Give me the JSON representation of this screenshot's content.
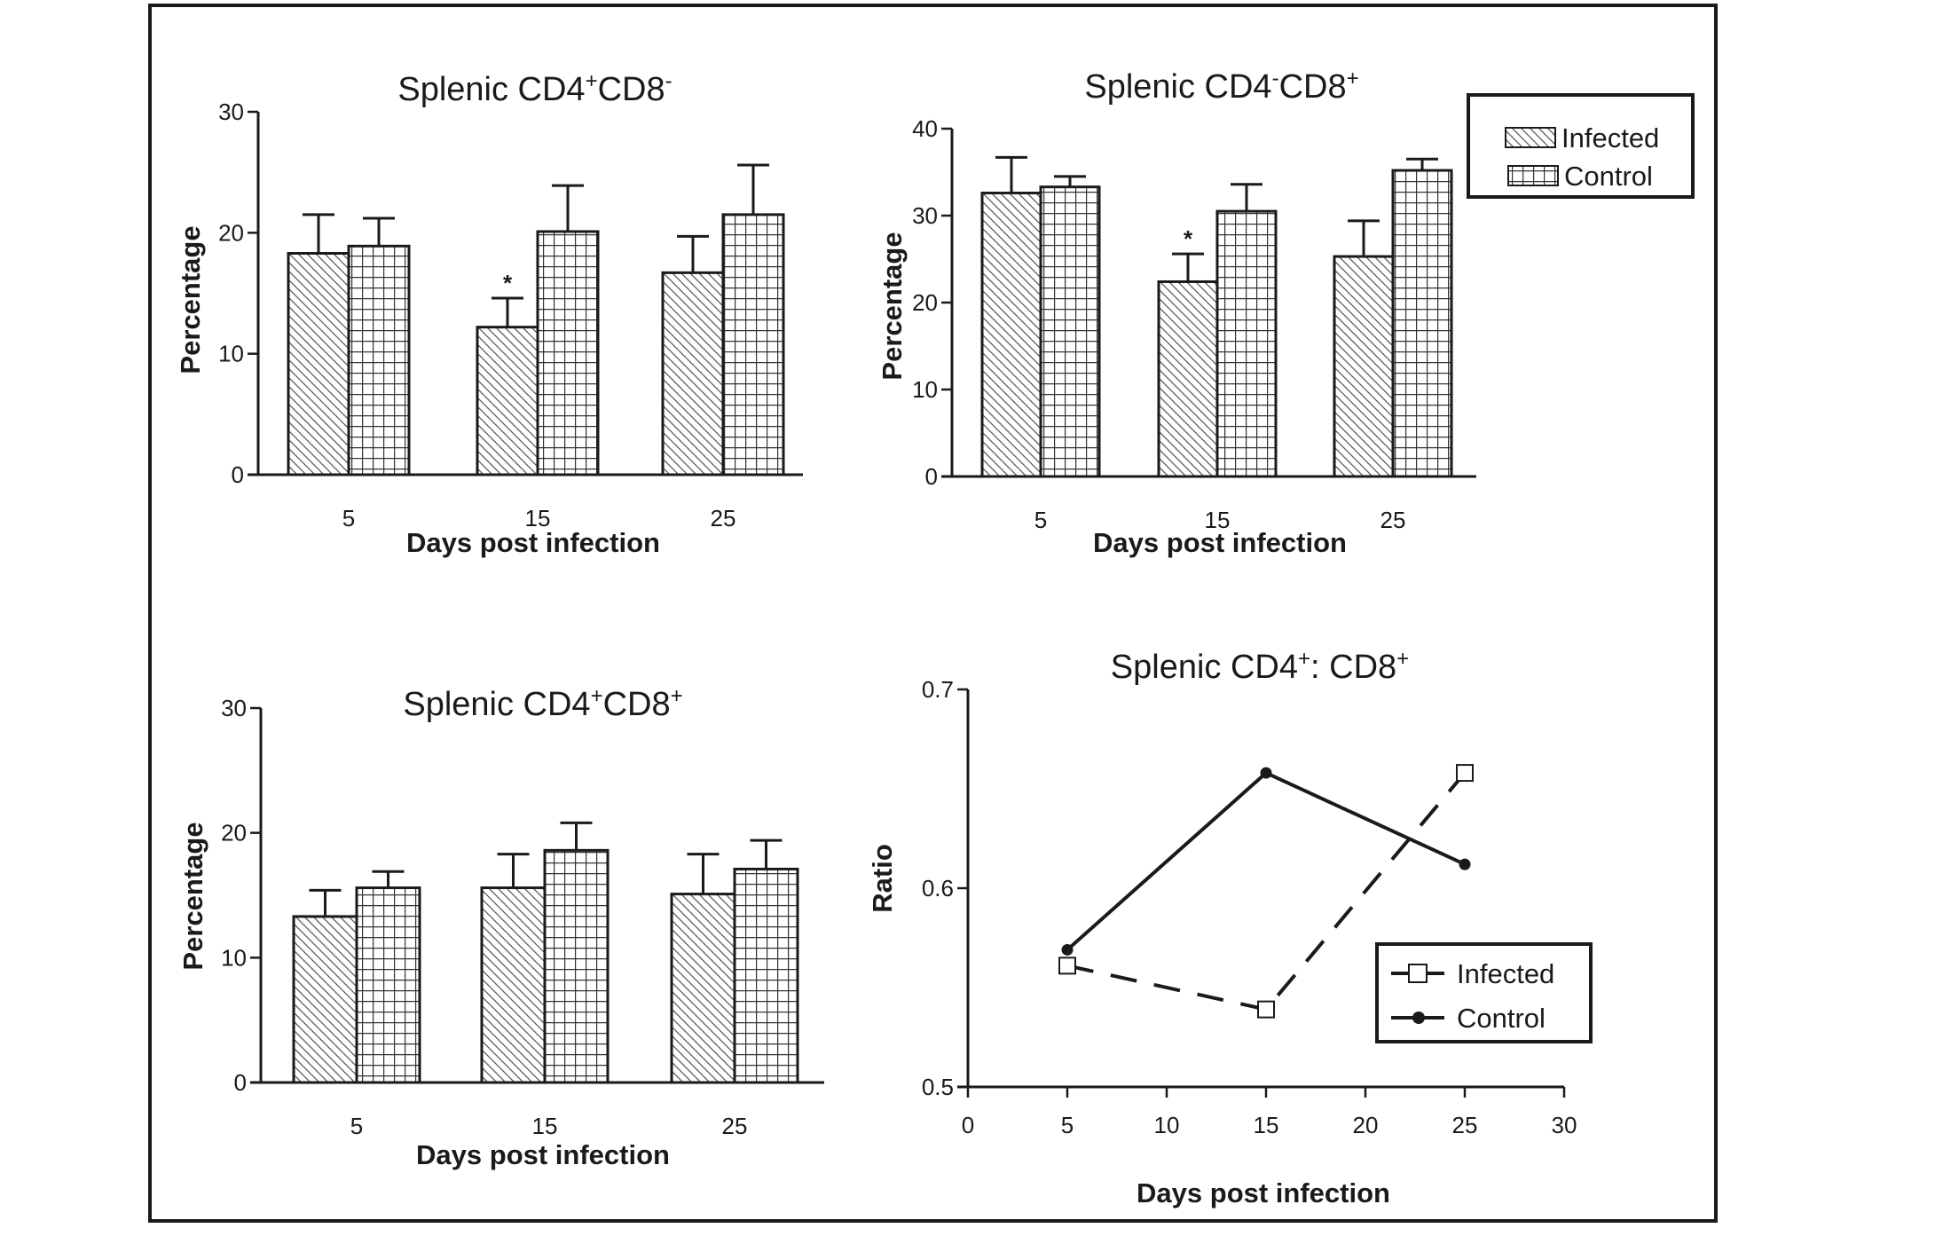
{
  "chart_data": [
    {
      "type": "bar",
      "id": "cd4pos-cd8neg",
      "title": "Splenic CD4",
      "title_sup1": "+",
      "title_mid": "CD8",
      "title_sup2": "-",
      "xlabel": "Days post infection",
      "ylabel": "Percentage",
      "ylim": [
        0,
        30
      ],
      "yticks": [
        "0",
        "10",
        "20",
        "30"
      ],
      "yticks_values": [
        0,
        10,
        20,
        30
      ],
      "categories": [
        "5",
        "15",
        "25"
      ],
      "series": [
        {
          "name": "Infected",
          "pattern": "diagonal-hatch",
          "values": [
            18.3,
            12.2,
            16.7
          ],
          "error": [
            3.2,
            2.4,
            3.0
          ]
        },
        {
          "name": "Control",
          "pattern": "grid",
          "values": [
            18.9,
            20.1,
            21.5
          ],
          "error": [
            2.3,
            3.8,
            4.1
          ]
        }
      ],
      "annotations": [
        {
          "category": "15",
          "series": "Infected",
          "text": "*"
        }
      ],
      "grid": false
    },
    {
      "type": "bar",
      "id": "cd4neg-cd8pos",
      "title": "Splenic CD4",
      "title_sup1": "-",
      "title_mid": "CD8",
      "title_sup2": "+",
      "xlabel": "Days post infection",
      "ylabel": "Percentage",
      "ylim": [
        0,
        40
      ],
      "yticks": [
        "0",
        "10",
        "20",
        "30",
        "40"
      ],
      "yticks_values": [
        0,
        10,
        20,
        30,
        40
      ],
      "categories": [
        "5",
        "15",
        "25"
      ],
      "series": [
        {
          "name": "Infected",
          "pattern": "diagonal-hatch",
          "values": [
            32.6,
            22.4,
            25.3
          ],
          "error": [
            4.1,
            3.2,
            4.1
          ]
        },
        {
          "name": "Control",
          "pattern": "grid",
          "values": [
            33.3,
            30.5,
            35.2
          ],
          "error": [
            1.2,
            3.1,
            1.3
          ]
        }
      ],
      "annotations": [
        {
          "category": "15",
          "series": "Infected",
          "text": "*"
        }
      ],
      "legend": {
        "position": "top-right",
        "entries": [
          "Infected",
          "Control"
        ]
      },
      "grid": false
    },
    {
      "type": "bar",
      "id": "cd4pos-cd8pos",
      "title": "Splenic CD4",
      "title_sup1": "+",
      "title_mid": "CD8",
      "title_sup2": "+",
      "xlabel": "Days post infection",
      "ylabel": "Percentage",
      "ylim": [
        0,
        30
      ],
      "yticks": [
        "0",
        "10",
        "20",
        "30"
      ],
      "yticks_values": [
        0,
        10,
        20,
        30
      ],
      "categories": [
        "5",
        "15",
        "25"
      ],
      "series": [
        {
          "name": "Infected",
          "pattern": "diagonal-hatch",
          "values": [
            13.3,
            15.6,
            15.1
          ],
          "error": [
            2.1,
            2.7,
            3.2
          ]
        },
        {
          "name": "Control",
          "pattern": "grid",
          "values": [
            15.6,
            18.6,
            17.1
          ],
          "error": [
            1.3,
            2.2,
            2.3
          ]
        }
      ],
      "grid": false
    },
    {
      "type": "line",
      "id": "cd4-cd8-ratio",
      "title": "Splenic CD4",
      "title_sup1": "+",
      "title_mid": ": CD8",
      "title_sup2": "+",
      "xlabel": "Days post infection",
      "ylabel": "Ratio",
      "xlim": [
        0,
        30
      ],
      "ylim": [
        0.5,
        0.7
      ],
      "xticks": [
        "0",
        "5",
        "10",
        "15",
        "20",
        "25",
        "30"
      ],
      "xticks_values": [
        0,
        5,
        10,
        15,
        20,
        25,
        30
      ],
      "yticks": [
        "0.5",
        "0.6",
        "0.7"
      ],
      "yticks_values": [
        0.5,
        0.6,
        0.7
      ],
      "x": [
        5,
        15,
        25
      ],
      "series": [
        {
          "name": "Infected",
          "marker": "open-square",
          "line": "dashed",
          "values": [
            0.561,
            0.539,
            0.658
          ]
        },
        {
          "name": "Control",
          "marker": "filled-circle",
          "line": "solid",
          "values": [
            0.569,
            0.658,
            0.612
          ]
        }
      ],
      "legend": {
        "position": "bottom-right",
        "entries": [
          "Infected",
          "Control"
        ]
      },
      "grid": false
    }
  ]
}
